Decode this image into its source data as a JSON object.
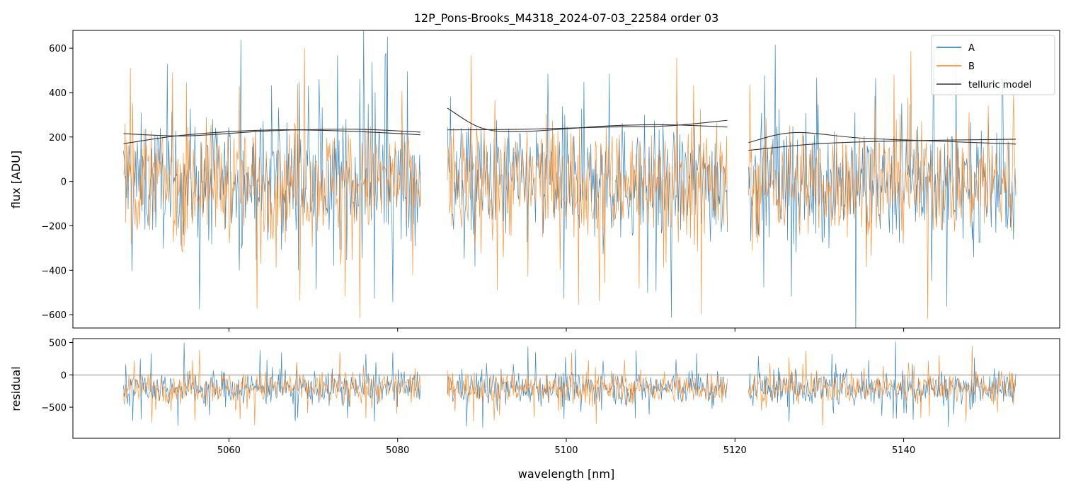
{
  "chart_data": [
    {
      "type": "line",
      "title": "12P_Pons-Brooks_M4318_2024-07-03_22584  order 03",
      "ylabel": "flux [ADU]",
      "xlim": [
        5041.5,
        5158.5
      ],
      "ylim": [
        -660,
        680
      ],
      "yticks": [
        -600,
        -400,
        -200,
        0,
        200,
        400,
        600
      ],
      "xticks": [
        5060,
        5080,
        5100,
        5120,
        5140
      ],
      "segments": [
        [
          5047.5,
          5082.7
        ],
        [
          5085.9,
          5119.1
        ],
        [
          5121.6,
          5153.3
        ]
      ],
      "series": [
        {
          "name": "A",
          "color": "#1f77b4",
          "center": 0,
          "spread": 250,
          "clip_low": true
        },
        {
          "name": "B",
          "color": "#ff7f0e",
          "center": 0,
          "spread": 230,
          "clip_high": true
        },
        {
          "name": "telluric model",
          "color": "#333333",
          "curves": [
            {
              "x": [
                5047.5,
                5055,
                5065,
                5075,
                5082.7
              ],
              "y": [
                170,
                210,
                232,
                225,
                210
              ]
            },
            {
              "x": [
                5047.5,
                5055,
                5065,
                5075,
                5082.7
              ],
              "y": [
                215,
                205,
                228,
                235,
                222
              ]
            },
            {
              "x": [
                5085.9,
                5090,
                5095,
                5105,
                5112,
                5119.1
              ],
              "y": [
                330,
                240,
                225,
                250,
                255,
                245
              ]
            },
            {
              "x": [
                5085.9,
                5095,
                5105,
                5112,
                5119.1
              ],
              "y": [
                232,
                235,
                245,
                250,
                275
              ]
            },
            {
              "x": [
                5121.6,
                5127,
                5135,
                5145,
                5153.3
              ],
              "y": [
                175,
                220,
                195,
                180,
                168
              ]
            },
            {
              "x": [
                5121.6,
                5130,
                5140,
                5153.3
              ],
              "y": [
                140,
                170,
                183,
                190
              ]
            }
          ]
        }
      ],
      "legend_position": "top-right",
      "grid": false
    },
    {
      "type": "line",
      "ylabel": "residual",
      "xlabel": "wavelength [nm]",
      "xlim": [
        5041.5,
        5158.5
      ],
      "ylim": [
        -980,
        560
      ],
      "yticks": [
        -500,
        0,
        500
      ],
      "xticks": [
        5060,
        5080,
        5100,
        5120,
        5140
      ],
      "segments": [
        [
          5047.5,
          5082.7
        ],
        [
          5085.9,
          5119.1
        ],
        [
          5121.6,
          5153.3
        ]
      ],
      "series": [
        {
          "name": "A",
          "color": "#1f77b4",
          "center": -200,
          "spread": 240
        },
        {
          "name": "B",
          "color": "#ff7f0e",
          "center": -190,
          "spread": 220
        }
      ],
      "reference_line": 0,
      "grid": false
    }
  ],
  "legend": [
    {
      "label": "A",
      "color": "#1f77b4"
    },
    {
      "label": "B",
      "color": "#ff7f0e"
    },
    {
      "label": "telluric model",
      "color": "#333333"
    }
  ]
}
